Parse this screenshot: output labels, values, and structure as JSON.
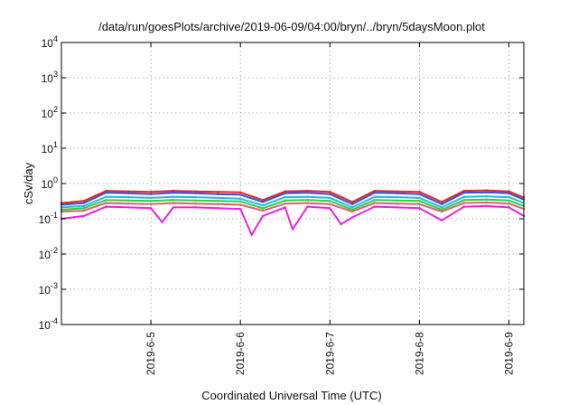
{
  "chart_data": {
    "type": "line",
    "title": "/data/run/goesPlots/archive/2019-06-09/04:00/bryn/../bryn/5daysMoon.plot",
    "xlabel": "Coordinated Universal Time (UTC)",
    "ylabel": "cSv/day",
    "yscale": "log",
    "ylim": [
      0.0001,
      10000
    ],
    "yticks": [
      {
        "base": "10",
        "exp": "-4",
        "value": 0.0001
      },
      {
        "base": "10",
        "exp": "-3",
        "value": 0.001
      },
      {
        "base": "10",
        "exp": "-2",
        "value": 0.01
      },
      {
        "base": "10",
        "exp": "-1",
        "value": 0.1
      },
      {
        "base": "10",
        "exp": "0",
        "value": 1
      },
      {
        "base": "10",
        "exp": "1",
        "value": 10
      },
      {
        "base": "10",
        "exp": "2",
        "value": 100
      },
      {
        "base": "10",
        "exp": "3",
        "value": 1000
      },
      {
        "base": "10",
        "exp": "4",
        "value": 10000
      }
    ],
    "xlim": [
      "2019-06-04T00:00",
      "2019-06-09T04:00"
    ],
    "xticks": [
      {
        "label": "2019-6-5",
        "value": "2019-06-05T00:00"
      },
      {
        "label": "2019-6-6",
        "value": "2019-06-06T00:00"
      },
      {
        "label": "2019-6-7",
        "value": "2019-06-07T00:00"
      },
      {
        "label": "2019-6-8",
        "value": "2019-06-08T00:00"
      },
      {
        "label": "2019-6-9",
        "value": "2019-06-09T00:00"
      }
    ],
    "grid": true,
    "series": [
      {
        "color": "#e8232a",
        "x": [
          "2019-06-04T00:00",
          "2019-06-04T06:00",
          "2019-06-04T12:00",
          "2019-06-04T18:00",
          "2019-06-05T00:00",
          "2019-06-05T06:00",
          "2019-06-05T12:00",
          "2019-06-05T18:00",
          "2019-06-06T00:00",
          "2019-06-06T06:00",
          "2019-06-06T12:00",
          "2019-06-06T18:00",
          "2019-06-07T00:00",
          "2019-06-07T06:00",
          "2019-06-07T12:00",
          "2019-06-07T18:00",
          "2019-06-08T00:00",
          "2019-06-08T06:00",
          "2019-06-08T12:00",
          "2019-06-08T18:00",
          "2019-06-09T00:00",
          "2019-06-09T04:00"
        ],
        "y": [
          0.28,
          0.32,
          0.62,
          0.6,
          0.58,
          0.62,
          0.6,
          0.58,
          0.56,
          0.34,
          0.6,
          0.62,
          0.58,
          0.3,
          0.62,
          0.6,
          0.58,
          0.3,
          0.62,
          0.64,
          0.6,
          0.4
        ]
      },
      {
        "color": "#3355cc",
        "x": [
          "2019-06-04T00:00",
          "2019-06-04T06:00",
          "2019-06-04T12:00",
          "2019-06-04T18:00",
          "2019-06-05T00:00",
          "2019-06-05T06:00",
          "2019-06-05T12:00",
          "2019-06-05T18:00",
          "2019-06-06T00:00",
          "2019-06-06T06:00",
          "2019-06-06T12:00",
          "2019-06-06T18:00",
          "2019-06-07T00:00",
          "2019-06-07T06:00",
          "2019-06-07T12:00",
          "2019-06-07T18:00",
          "2019-06-08T00:00",
          "2019-06-08T06:00",
          "2019-06-08T12:00",
          "2019-06-08T18:00",
          "2019-06-09T00:00",
          "2019-06-09T04:00"
        ],
        "y": [
          0.25,
          0.28,
          0.55,
          0.53,
          0.5,
          0.55,
          0.53,
          0.5,
          0.48,
          0.3,
          0.53,
          0.55,
          0.5,
          0.26,
          0.55,
          0.53,
          0.5,
          0.26,
          0.55,
          0.56,
          0.53,
          0.35
        ]
      },
      {
        "color": "#22bbdd",
        "x": [
          "2019-06-04T00:00",
          "2019-06-04T06:00",
          "2019-06-04T12:00",
          "2019-06-04T18:00",
          "2019-06-05T00:00",
          "2019-06-05T06:00",
          "2019-06-05T12:00",
          "2019-06-05T18:00",
          "2019-06-06T00:00",
          "2019-06-06T06:00",
          "2019-06-06T12:00",
          "2019-06-06T18:00",
          "2019-06-07T00:00",
          "2019-06-07T06:00",
          "2019-06-07T12:00",
          "2019-06-07T18:00",
          "2019-06-08T00:00",
          "2019-06-08T06:00",
          "2019-06-08T12:00",
          "2019-06-08T18:00",
          "2019-06-09T00:00",
          "2019-06-09T04:00"
        ],
        "y": [
          0.21,
          0.23,
          0.42,
          0.41,
          0.39,
          0.42,
          0.41,
          0.39,
          0.37,
          0.24,
          0.41,
          0.42,
          0.39,
          0.21,
          0.42,
          0.41,
          0.39,
          0.21,
          0.42,
          0.43,
          0.41,
          0.28
        ]
      },
      {
        "color": "#33cc44",
        "x": [
          "2019-06-04T00:00",
          "2019-06-04T06:00",
          "2019-06-04T12:00",
          "2019-06-04T18:00",
          "2019-06-05T00:00",
          "2019-06-05T06:00",
          "2019-06-05T12:00",
          "2019-06-05T18:00",
          "2019-06-06T00:00",
          "2019-06-06T06:00",
          "2019-06-06T12:00",
          "2019-06-06T18:00",
          "2019-06-07T00:00",
          "2019-06-07T06:00",
          "2019-06-07T12:00",
          "2019-06-07T18:00",
          "2019-06-08T00:00",
          "2019-06-08T06:00",
          "2019-06-08T12:00",
          "2019-06-08T18:00",
          "2019-06-09T00:00",
          "2019-06-09T04:00"
        ],
        "y": [
          0.18,
          0.2,
          0.34,
          0.33,
          0.32,
          0.34,
          0.33,
          0.32,
          0.31,
          0.2,
          0.33,
          0.34,
          0.32,
          0.18,
          0.34,
          0.33,
          0.32,
          0.18,
          0.34,
          0.35,
          0.33,
          0.23
        ]
      },
      {
        "color": "#e06070",
        "x": [
          "2019-06-04T00:00",
          "2019-06-04T06:00",
          "2019-06-04T12:00",
          "2019-06-04T18:00",
          "2019-06-05T00:00",
          "2019-06-05T06:00",
          "2019-06-05T12:00",
          "2019-06-05T18:00",
          "2019-06-06T00:00",
          "2019-06-06T06:00",
          "2019-06-06T12:00",
          "2019-06-06T18:00",
          "2019-06-07T00:00",
          "2019-06-07T06:00",
          "2019-06-07T12:00",
          "2019-06-07T18:00",
          "2019-06-08T00:00",
          "2019-06-08T06:00",
          "2019-06-08T12:00",
          "2019-06-08T18:00",
          "2019-06-09T00:00",
          "2019-06-09T04:00"
        ],
        "y": [
          0.16,
          0.17,
          0.28,
          0.27,
          0.26,
          0.28,
          0.27,
          0.26,
          0.25,
          0.17,
          0.27,
          0.28,
          0.26,
          0.16,
          0.28,
          0.27,
          0.26,
          0.16,
          0.28,
          0.29,
          0.27,
          0.19
        ]
      },
      {
        "color": "#ee22dd",
        "x": [
          "2019-06-04T00:00",
          "2019-06-04T06:00",
          "2019-06-04T12:00",
          "2019-06-04T18:00",
          "2019-06-05T00:00",
          "2019-06-05T03:00",
          "2019-06-05T06:00",
          "2019-06-05T12:00",
          "2019-06-05T18:00",
          "2019-06-06T00:00",
          "2019-06-06T03:00",
          "2019-06-06T06:00",
          "2019-06-06T12:00",
          "2019-06-06T14:00",
          "2019-06-06T18:00",
          "2019-06-07T00:00",
          "2019-06-07T03:00",
          "2019-06-07T06:00",
          "2019-06-07T12:00",
          "2019-06-07T18:00",
          "2019-06-08T00:00",
          "2019-06-08T06:00",
          "2019-06-08T12:00",
          "2019-06-08T18:00",
          "2019-06-09T00:00",
          "2019-06-09T04:00"
        ],
        "y": [
          0.1,
          0.12,
          0.22,
          0.21,
          0.2,
          0.08,
          0.21,
          0.21,
          0.2,
          0.19,
          0.035,
          0.12,
          0.21,
          0.05,
          0.22,
          0.2,
          0.07,
          0.11,
          0.22,
          0.21,
          0.2,
          0.09,
          0.22,
          0.23,
          0.21,
          0.12
        ]
      }
    ]
  }
}
